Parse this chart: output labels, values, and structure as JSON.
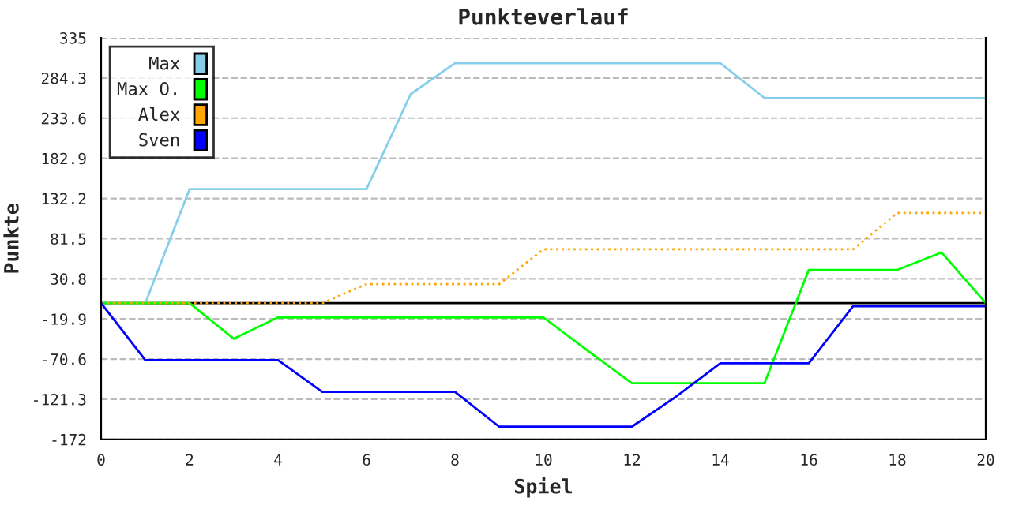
{
  "chart_data": {
    "type": "line",
    "title": "Punkteverlauf",
    "xlabel": "Spiel",
    "ylabel": "Punkte",
    "x": [
      0,
      1,
      2,
      3,
      4,
      5,
      6,
      7,
      8,
      9,
      10,
      11,
      12,
      13,
      14,
      15,
      16,
      17,
      18,
      19,
      20
    ],
    "series": [
      {
        "name": "Max",
        "color": "#87ceeb",
        "values": [
          0,
          0,
          144,
          144,
          144,
          144,
          144,
          264,
          303,
          303,
          303,
          303,
          303,
          303,
          303,
          259,
          259,
          259,
          259,
          259,
          259
        ]
      },
      {
        "name": "Max O.",
        "color": "#00ff00",
        "values": [
          0,
          0,
          0,
          -45,
          -18,
          -18,
          -18,
          -18,
          -18,
          -18,
          -18,
          -60,
          -101,
          -101,
          -101,
          -101,
          42,
          42,
          42,
          64,
          0
        ]
      },
      {
        "name": "Alex",
        "color": "#ffa500",
        "line_style": "dotted",
        "values": [
          0,
          0,
          0,
          0,
          0,
          0,
          24,
          24,
          24,
          24,
          68,
          68,
          68,
          68,
          68,
          68,
          68,
          68,
          114,
          114,
          114
        ]
      },
      {
        "name": "Sven",
        "color": "#0000ff",
        "values": [
          0,
          -72,
          -72,
          -72,
          -72,
          -112,
          -112,
          -112,
          -112,
          -156,
          -156,
          -156,
          -156,
          -118,
          -76,
          -76,
          -76,
          -4,
          -4,
          -4,
          -4
        ]
      }
    ],
    "xlim": [
      0,
      20
    ],
    "xticks": [
      0,
      2,
      4,
      6,
      8,
      10,
      12,
      14,
      16,
      18,
      20
    ],
    "ylim": [
      -172,
      335
    ],
    "yticks": [
      -172,
      -121.3,
      -70.6,
      -19.9,
      30.8,
      81.5,
      132.2,
      182.9,
      233.6,
      284.3,
      335
    ],
    "ref_lines": [
      {
        "axis": "y",
        "value": 0,
        "color": "#000000"
      }
    ],
    "grid": "y",
    "legend": "top left"
  }
}
